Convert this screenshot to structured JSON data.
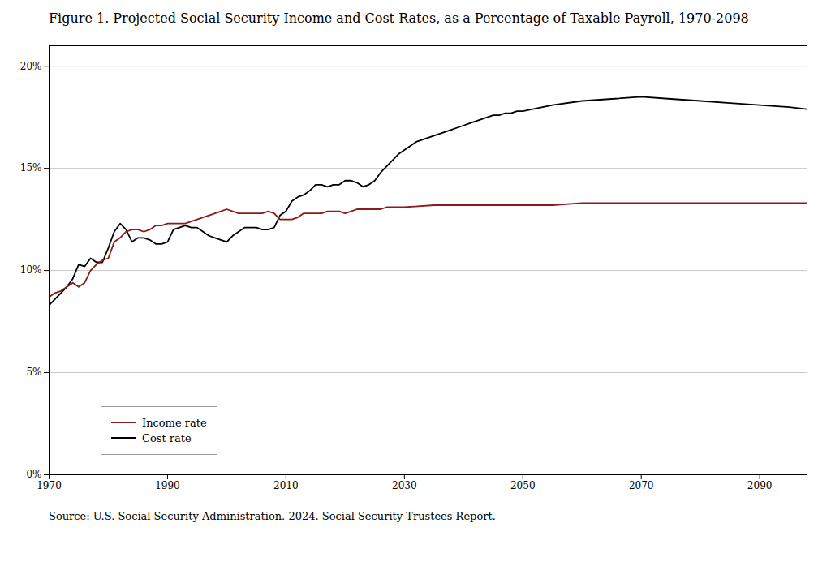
{
  "chart_data": {
    "type": "line",
    "title": "Figure 1. Projected Social Security Income and Cost Rates, as a Percentage of Taxable Payroll, 1970-2098",
    "caption": "Source: U.S. Social Security Administration. 2024. Social Security Trustees Report.",
    "xlim": [
      1970,
      2098
    ],
    "xticks": [
      1970,
      1990,
      2010,
      2030,
      2050,
      2070,
      2090
    ],
    "ylim": [
      0.0,
      0.21
    ],
    "yticks": [
      {
        "value": 0.0,
        "label": "0%"
      },
      {
        "value": 0.05,
        "label": "5%"
      },
      {
        "value": 0.1,
        "label": "10%"
      },
      {
        "value": 0.15,
        "label": "15%"
      },
      {
        "value": 0.2,
        "label": "20%"
      }
    ],
    "grid": true,
    "legend": "lower left",
    "series": [
      {
        "name": "Income rate",
        "color": "#8B1A1A",
        "x": [
          1970,
          1971,
          1972,
          1973,
          1974,
          1975,
          1976,
          1977,
          1978,
          1979,
          1980,
          1981,
          1982,
          1983,
          1984,
          1985,
          1986,
          1987,
          1988,
          1989,
          1990,
          1991,
          1992,
          1993,
          1994,
          1995,
          1996,
          1997,
          1998,
          1999,
          2000,
          2001,
          2002,
          2003,
          2004,
          2005,
          2006,
          2007,
          2008,
          2009,
          2010,
          2011,
          2012,
          2013,
          2014,
          2015,
          2016,
          2017,
          2018,
          2019,
          2020,
          2021,
          2022,
          2023,
          2024,
          2025,
          2026,
          2027,
          2028,
          2029,
          2030,
          2035,
          2040,
          2045,
          2050,
          2055,
          2060,
          2065,
          2070,
          2075,
          2080,
          2085,
          2090,
          2095,
          2098
        ],
        "values": [
          0.087,
          0.089,
          0.09,
          0.092,
          0.094,
          0.092,
          0.094,
          0.1,
          0.103,
          0.105,
          0.106,
          0.114,
          0.116,
          0.119,
          0.12,
          0.12,
          0.119,
          0.12,
          0.122,
          0.122,
          0.123,
          0.123,
          0.123,
          0.123,
          0.124,
          0.125,
          0.126,
          0.127,
          0.128,
          0.129,
          0.13,
          0.129,
          0.128,
          0.128,
          0.128,
          0.128,
          0.128,
          0.129,
          0.128,
          0.125,
          0.125,
          0.125,
          0.126,
          0.128,
          0.128,
          0.128,
          0.128,
          0.129,
          0.129,
          0.129,
          0.128,
          0.129,
          0.13,
          0.13,
          0.13,
          0.13,
          0.13,
          0.131,
          0.131,
          0.131,
          0.131,
          0.132,
          0.132,
          0.132,
          0.132,
          0.132,
          0.133,
          0.133,
          0.133,
          0.133,
          0.133,
          0.133,
          0.133,
          0.133,
          0.133
        ]
      },
      {
        "name": "Cost rate",
        "color": "#000000",
        "x": [
          1970,
          1971,
          1972,
          1973,
          1974,
          1975,
          1976,
          1977,
          1978,
          1979,
          1980,
          1981,
          1982,
          1983,
          1984,
          1985,
          1986,
          1987,
          1988,
          1989,
          1990,
          1991,
          1992,
          1993,
          1994,
          1995,
          1996,
          1997,
          1998,
          1999,
          2000,
          2001,
          2002,
          2003,
          2004,
          2005,
          2006,
          2007,
          2008,
          2009,
          2010,
          2011,
          2012,
          2013,
          2014,
          2015,
          2016,
          2017,
          2018,
          2019,
          2020,
          2021,
          2022,
          2023,
          2024,
          2025,
          2026,
          2027,
          2028,
          2029,
          2030,
          2031,
          2032,
          2033,
          2034,
          2035,
          2036,
          2037,
          2038,
          2039,
          2040,
          2041,
          2042,
          2043,
          2044,
          2045,
          2046,
          2047,
          2048,
          2049,
          2050,
          2055,
          2060,
          2065,
          2070,
          2075,
          2080,
          2085,
          2090,
          2095,
          2098
        ],
        "values": [
          0.083,
          0.086,
          0.089,
          0.092,
          0.096,
          0.103,
          0.102,
          0.106,
          0.104,
          0.104,
          0.111,
          0.119,
          0.123,
          0.12,
          0.114,
          0.116,
          0.116,
          0.115,
          0.113,
          0.113,
          0.114,
          0.12,
          0.121,
          0.122,
          0.121,
          0.121,
          0.119,
          0.117,
          0.116,
          0.115,
          0.114,
          0.117,
          0.119,
          0.121,
          0.121,
          0.121,
          0.12,
          0.12,
          0.121,
          0.127,
          0.129,
          0.134,
          0.136,
          0.137,
          0.139,
          0.142,
          0.142,
          0.141,
          0.142,
          0.142,
          0.144,
          0.144,
          0.143,
          0.141,
          0.142,
          0.144,
          0.148,
          0.151,
          0.154,
          0.157,
          0.159,
          0.161,
          0.163,
          0.164,
          0.165,
          0.166,
          0.167,
          0.168,
          0.169,
          0.17,
          0.171,
          0.172,
          0.173,
          0.174,
          0.175,
          0.176,
          0.176,
          0.177,
          0.177,
          0.178,
          0.178,
          0.181,
          0.183,
          0.184,
          0.185,
          0.184,
          0.183,
          0.182,
          0.181,
          0.18,
          0.179
        ]
      }
    ]
  }
}
